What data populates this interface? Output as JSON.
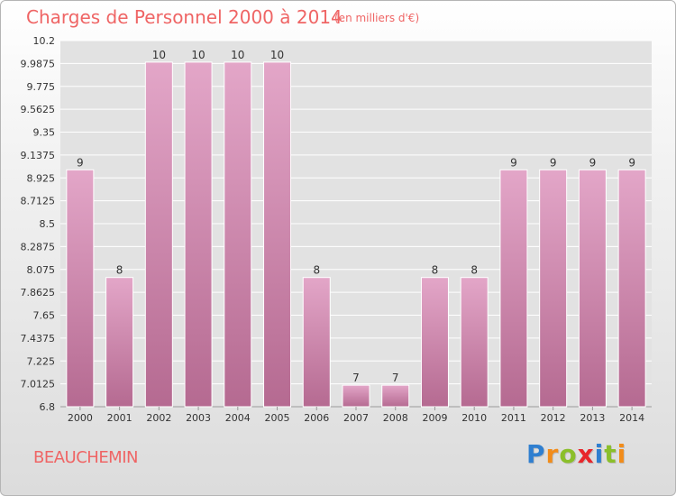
{
  "header": {
    "title": "Charges de Personnel 2000 à 2014",
    "unit": "(en milliers d'€)"
  },
  "footer": {
    "commune": "BEAUCHEMIN",
    "brand_letters": [
      "P",
      "r",
      "o",
      "x",
      "i",
      "t",
      "i"
    ],
    "brand_colors": [
      "#2f7fd0",
      "#f28c1a",
      "#8bbf2a",
      "#e8262b",
      "#2f7fd0",
      "#8bbf2a",
      "#f28c1a"
    ]
  },
  "colors": {
    "bar_top": "#e3a6c8",
    "bar_bottom": "#b56a91",
    "text": "#ef6565"
  },
  "chart_data": {
    "type": "bar",
    "title": "Charges de Personnel 2000 à 2014",
    "subtitle": "(en milliers d'€)",
    "categories": [
      "2000",
      "2001",
      "2002",
      "2003",
      "2004",
      "2005",
      "2006",
      "2007",
      "2008",
      "2009",
      "2010",
      "2011",
      "2012",
      "2013",
      "2014"
    ],
    "values": [
      9,
      8,
      10,
      10,
      10,
      10,
      8,
      7,
      7,
      8,
      8,
      9,
      9,
      9,
      9
    ],
    "ylim": [
      6.8,
      10.2
    ],
    "yticks": [
      "6.8",
      "7.0125",
      "7.225",
      "7.4375",
      "7.65",
      "7.8625",
      "8.075",
      "8.2875",
      "8.5",
      "8.7125",
      "8.925",
      "9.1375",
      "9.35",
      "9.5625",
      "9.775",
      "9.9875",
      "10.2"
    ],
    "grid": true,
    "legend": "none"
  }
}
